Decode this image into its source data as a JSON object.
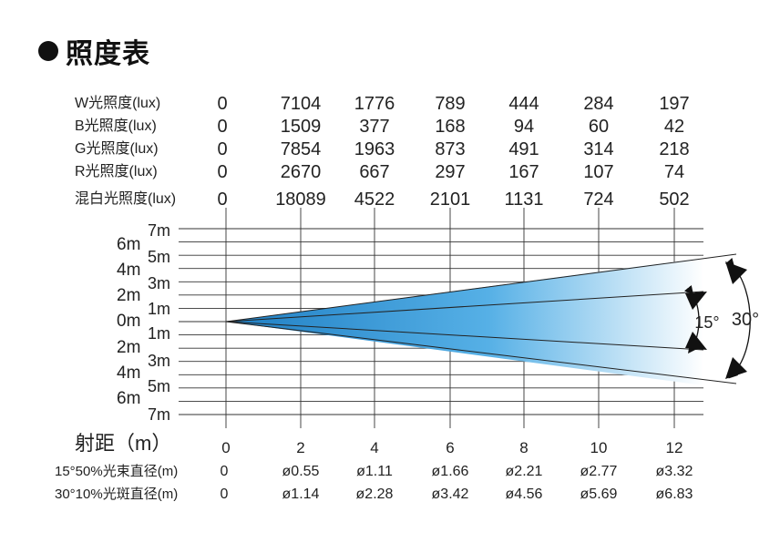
{
  "title": "照度表",
  "lux_table": {
    "rows": [
      {
        "label": "W光照度(lux)",
        "values": [
          "0",
          "7104",
          "1776",
          "789",
          "444",
          "284",
          "197"
        ]
      },
      {
        "label": "B光照度(lux)",
        "values": [
          "0",
          "1509",
          "377",
          "168",
          "94",
          "60",
          "42"
        ]
      },
      {
        "label": "G光照度(lux)",
        "values": [
          "0",
          "7854",
          "1963",
          "873",
          "491",
          "314",
          "218"
        ]
      },
      {
        "label": "R光照度(lux)",
        "values": [
          "0",
          "2670",
          "667",
          "297",
          "167",
          "107",
          "74"
        ]
      },
      {
        "label": "混白光照度(lux)",
        "values": [
          "0",
          "18089",
          "4522",
          "2101",
          "1131",
          "724",
          "502"
        ]
      }
    ]
  },
  "chart": {
    "outer_labels": [
      "6m",
      "4m",
      "2m",
      "0m",
      "2m",
      "4m",
      "6m"
    ],
    "inner_labels": [
      "7m",
      "5m",
      "3m",
      "1m",
      "1m",
      "3m",
      "5m",
      "7m"
    ],
    "distance_label": "射距（m）",
    "distance_ticks": [
      "0",
      "2",
      "4",
      "6",
      "8",
      "10",
      "12"
    ],
    "angle_inner": "15°",
    "angle_outer": "30°",
    "beam_colors": {
      "dark": "#1f7fc4",
      "mid": "#56b0e6",
      "light": "#ffffff"
    }
  },
  "diameters": [
    {
      "label": "15°50%光束直径(m)",
      "values": [
        "0",
        "ø0.55",
        "ø1.11",
        "ø1.66",
        "ø2.21",
        "ø2.77",
        "ø3.32"
      ]
    },
    {
      "label": "30°10%光斑直径(m)",
      "values": [
        "0",
        "ø1.14",
        "ø2.28",
        "ø3.42",
        "ø4.56",
        "ø5.69",
        "ø6.83"
      ]
    }
  ]
}
